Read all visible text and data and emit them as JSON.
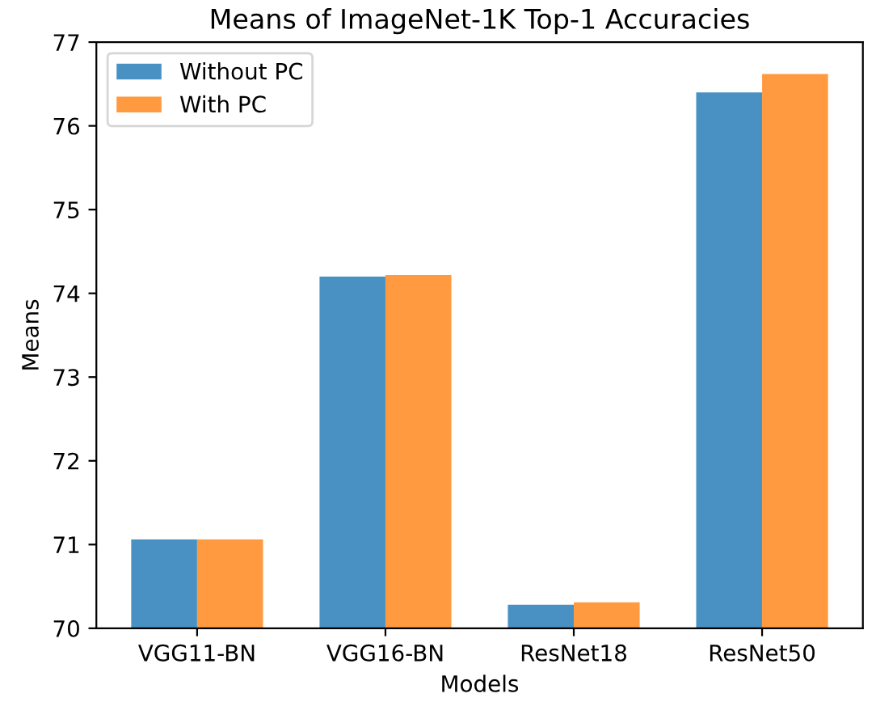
{
  "chart_data": {
    "type": "bar",
    "title": "Means of ImageNet-1K Top-1 Accuracies",
    "xlabel": "Models",
    "ylabel": "Means",
    "categories": [
      "VGG11-BN",
      "VGG16-BN",
      "ResNet18",
      "ResNet50"
    ],
    "series": [
      {
        "name": "Without PC",
        "color": "#4a91c3",
        "values": [
          71.06,
          74.2,
          70.28,
          76.4
        ]
      },
      {
        "name": "With PC",
        "color": "#ff9a40",
        "values": [
          71.06,
          74.22,
          70.31,
          76.62
        ]
      }
    ],
    "ylim": [
      70,
      77
    ],
    "yticks": [
      70,
      71,
      72,
      73,
      74,
      75,
      76,
      77
    ],
    "legend": "top left",
    "grid": false
  }
}
